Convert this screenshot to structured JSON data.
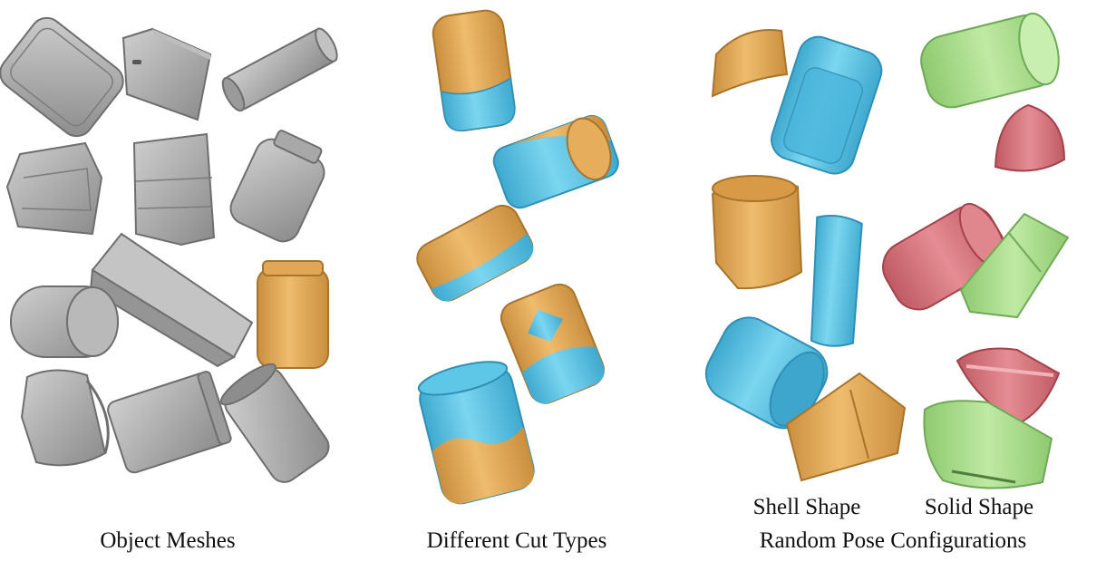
{
  "panels": {
    "meshes": {
      "caption": "Object Meshes"
    },
    "cuts": {
      "caption": "Different Cut Types"
    },
    "random": {
      "caption": "Random Pose Configurations",
      "shell_label": "Shell Shape",
      "solid_label": "Solid Shape"
    }
  },
  "colors": {
    "mesh_gray": "#a9a9a9",
    "cut_orange": "#e5ad5c",
    "cut_blue": "#5ec6e6",
    "solid_green": "#a8dd8a",
    "solid_red": "#d8737b"
  }
}
